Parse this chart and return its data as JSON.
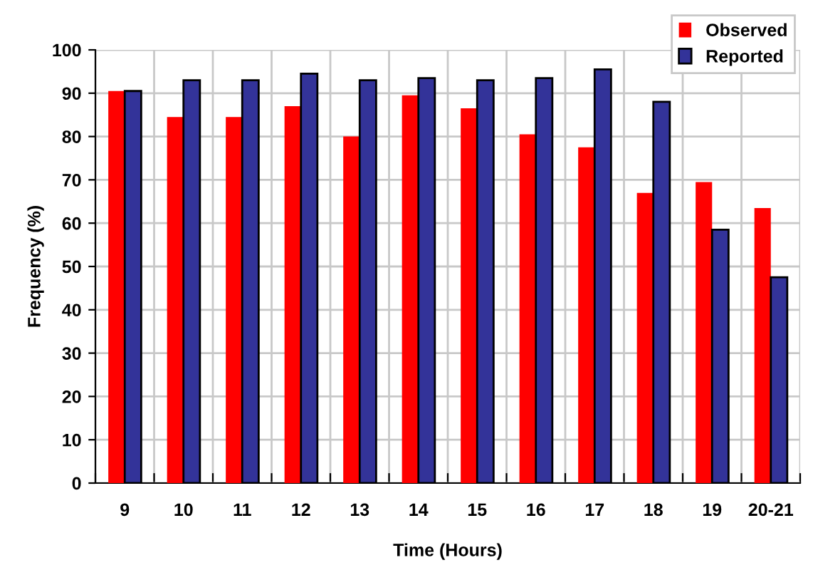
{
  "chart_data": {
    "type": "bar",
    "xlabel": "Time (Hours)",
    "ylabel": "Frequency (%)",
    "categories": [
      "9",
      "10",
      "11",
      "12",
      "13",
      "14",
      "15",
      "16",
      "17",
      "18",
      "19",
      "20-21"
    ],
    "series": [
      {
        "name": "Observed",
        "color": "#ff0000",
        "values": [
          90.5,
          84.5,
          84.5,
          87,
          80,
          89.5,
          86.5,
          80.5,
          77.5,
          67,
          69.5,
          63.5
        ]
      },
      {
        "name": "Reported",
        "color": "#333399",
        "values": [
          90.5,
          93,
          93,
          94.5,
          93,
          93.5,
          93,
          93.5,
          95.5,
          88,
          58.5,
          47.5
        ]
      }
    ],
    "ylim": [
      0,
      100
    ],
    "yticks": [
      0,
      10,
      20,
      30,
      40,
      50,
      60,
      70,
      80,
      90,
      100
    ],
    "grid": true,
    "legend": "top right"
  }
}
